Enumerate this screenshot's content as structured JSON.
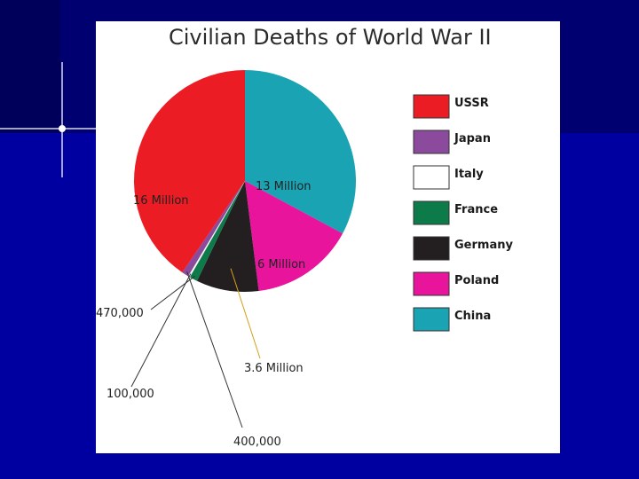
{
  "colors": {
    "slide_bg_dark": "#00005a",
    "slide_bg": "#0000a0",
    "panel": "#ffffff"
  },
  "chart_data": {
    "type": "pie",
    "title": "Civilian Deaths of World War II",
    "legend_position": "right",
    "slices": [
      {
        "name": "China",
        "value": 13000000,
        "label": "13 Million",
        "color": "#1aa3b3",
        "label_style": "inside"
      },
      {
        "name": "Poland",
        "value": 6000000,
        "label": "6 Million",
        "color": "#e8149b",
        "label_style": "inside"
      },
      {
        "name": "Germany",
        "value": 3600000,
        "label": "3.6 Million",
        "color": "#231f20",
        "label_style": "leader"
      },
      {
        "name": "France",
        "value": 470000,
        "label": "470,000",
        "color": "#0d7a4a",
        "label_style": "leader"
      },
      {
        "name": "Italy",
        "value": 100000,
        "label": "100,000",
        "color": "#ffffff",
        "label_style": "leader"
      },
      {
        "name": "Japan",
        "value": 400000,
        "label": "400,000",
        "color": "#8b4a9c",
        "label_style": "leader"
      },
      {
        "name": "USSR",
        "value": 16000000,
        "label": "16 Million",
        "color": "#ec1c24",
        "label_style": "inside"
      }
    ],
    "legend": [
      {
        "name": "USSR",
        "color": "#ec1c24"
      },
      {
        "name": "Japan",
        "color": "#8b4a9c"
      },
      {
        "name": "Italy",
        "color": "#ffffff"
      },
      {
        "name": "France",
        "color": "#0d7a4a"
      },
      {
        "name": "Germany",
        "color": "#231f20"
      },
      {
        "name": "Poland",
        "color": "#e8149b"
      },
      {
        "name": "China",
        "color": "#1aa3b3"
      }
    ]
  }
}
